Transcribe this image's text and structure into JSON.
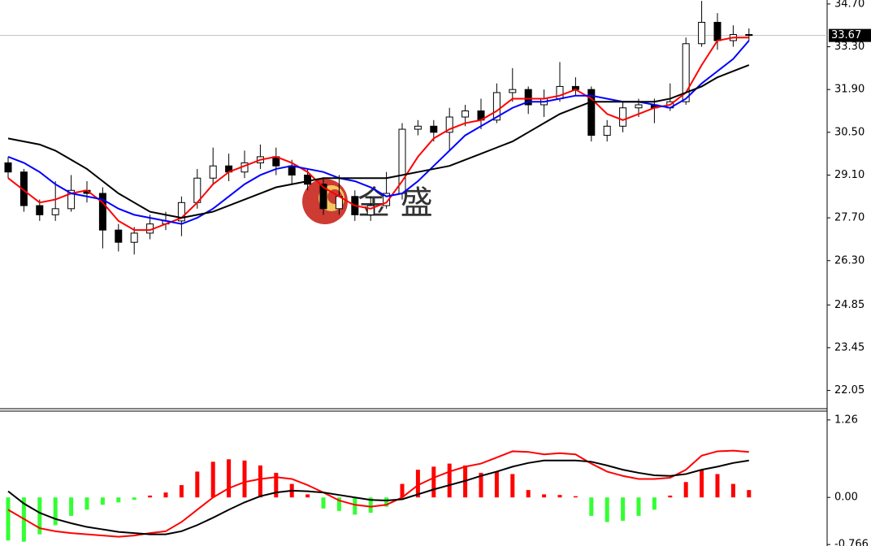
{
  "chart_data": [
    {
      "type": "candlestick",
      "up_color": "#ffffff",
      "down_color": "#000000",
      "edge_color": "#000000",
      "open": [
        29.5,
        29.2,
        28.1,
        27.8,
        28.0,
        28.6,
        28.5,
        27.3,
        26.9,
        27.2,
        27.5,
        27.6,
        28.2,
        29.0,
        29.4,
        29.2,
        29.5,
        29.7,
        29.4,
        29.1,
        28.8,
        28.0,
        28.4,
        27.8,
        28.1,
        28.5,
        30.6,
        30.7,
        30.5,
        31.0,
        31.2,
        30.9,
        31.8,
        31.9,
        31.4,
        31.6,
        32.0,
        31.9,
        30.4,
        30.7,
        31.3,
        31.4,
        31.3,
        31.5,
        33.4,
        34.1,
        33.5,
        33.7
      ],
      "high": [
        29.7,
        29.3,
        28.3,
        28.9,
        29.1,
        28.9,
        28.7,
        27.5,
        27.4,
        27.8,
        27.9,
        28.4,
        29.3,
        30.0,
        29.8,
        29.9,
        30.1,
        30.0,
        29.6,
        29.3,
        29.0,
        29.1,
        28.6,
        28.4,
        29.2,
        30.8,
        30.9,
        30.9,
        31.3,
        31.4,
        31.6,
        32.1,
        32.6,
        32.0,
        31.9,
        32.8,
        32.3,
        32.0,
        30.9,
        31.5,
        31.6,
        31.6,
        32.1,
        33.6,
        34.8,
        34.4,
        34.0,
        33.9
      ],
      "low": [
        29.0,
        27.9,
        27.6,
        27.6,
        27.9,
        28.2,
        26.7,
        26.6,
        26.5,
        27.0,
        27.3,
        27.1,
        28.0,
        28.8,
        28.9,
        29.0,
        29.3,
        29.1,
        28.8,
        28.6,
        27.8,
        27.8,
        27.6,
        27.6,
        28.0,
        28.3,
        30.4,
        30.2,
        29.9,
        30.7,
        30.6,
        30.8,
        31.5,
        31.1,
        31.0,
        31.5,
        31.7,
        30.2,
        30.2,
        30.5,
        31.0,
        30.8,
        31.2,
        31.4,
        33.3,
        33.2,
        33.3,
        33.5
      ],
      "close": [
        29.2,
        28.1,
        27.8,
        28.0,
        28.6,
        28.5,
        27.3,
        26.9,
        27.2,
        27.5,
        27.6,
        28.2,
        29.0,
        29.4,
        29.2,
        29.5,
        29.7,
        29.4,
        29.1,
        28.8,
        28.0,
        28.4,
        27.8,
        28.1,
        28.5,
        30.6,
        30.7,
        30.5,
        31.0,
        31.2,
        30.9,
        31.8,
        31.9,
        31.4,
        31.6,
        32.0,
        31.9,
        30.4,
        30.7,
        31.3,
        31.4,
        31.3,
        31.5,
        33.4,
        34.1,
        33.5,
        33.7,
        33.67
      ],
      "series": [
        {
          "color": "#ff0000",
          "values": [
            29.0,
            28.6,
            28.2,
            28.3,
            28.5,
            28.6,
            28.2,
            27.6,
            27.3,
            27.3,
            27.5,
            27.7,
            28.2,
            28.8,
            29.2,
            29.4,
            29.6,
            29.7,
            29.5,
            29.2,
            28.7,
            28.4,
            28.1,
            28.0,
            28.2,
            28.9,
            29.7,
            30.3,
            30.6,
            30.8,
            30.9,
            31.2,
            31.6,
            31.6,
            31.6,
            31.7,
            31.9,
            31.6,
            31.1,
            30.9,
            31.1,
            31.3,
            31.4,
            31.8,
            32.7,
            33.5,
            33.6,
            33.6
          ]
        },
        {
          "color": "#0000ff",
          "values": [
            29.7,
            29.5,
            29.2,
            28.8,
            28.5,
            28.4,
            28.3,
            28.0,
            27.8,
            27.7,
            27.6,
            27.5,
            27.7,
            28.0,
            28.4,
            28.8,
            29.1,
            29.3,
            29.4,
            29.3,
            29.2,
            29.0,
            28.9,
            28.7,
            28.4,
            28.5,
            28.9,
            29.4,
            29.9,
            30.4,
            30.7,
            31.0,
            31.3,
            31.5,
            31.5,
            31.6,
            31.7,
            31.7,
            31.6,
            31.5,
            31.5,
            31.4,
            31.3,
            31.6,
            32.1,
            32.5,
            32.9,
            33.5
          ]
        },
        {
          "color": "#000000",
          "values": [
            30.3,
            30.2,
            30.1,
            29.9,
            29.6,
            29.3,
            28.9,
            28.5,
            28.2,
            27.9,
            27.8,
            27.7,
            27.8,
            27.9,
            28.1,
            28.3,
            28.5,
            28.7,
            28.8,
            28.9,
            29.0,
            29.0,
            29.0,
            29.0,
            29.0,
            29.1,
            29.2,
            29.3,
            29.4,
            29.6,
            29.8,
            30.0,
            30.2,
            30.5,
            30.8,
            31.1,
            31.3,
            31.5,
            31.5,
            31.5,
            31.5,
            31.5,
            31.6,
            31.8,
            32.0,
            32.3,
            32.5,
            32.7
          ]
        }
      ],
      "last_price": 33.67,
      "watermark": "金 盛",
      "ylim": [
        21.48,
        34.83
      ],
      "yticks": [
        {
          "value": 34.7,
          "label": "34.70"
        },
        {
          "value": 33.3,
          "label": "33.30"
        },
        {
          "value": 31.9,
          "label": "31.90"
        },
        {
          "value": 30.5,
          "label": "30.50"
        },
        {
          "value": 29.1,
          "label": "29.10"
        },
        {
          "value": 27.7,
          "label": "27.70"
        },
        {
          "value": 26.3,
          "label": "26.30"
        },
        24.85,
        23.45,
        22.05
      ]
    },
    {
      "type": "macd",
      "positive_color": "#ff0000",
      "negative_color": "#33ff33",
      "values": [
        -0.7,
        -0.72,
        -0.6,
        -0.45,
        -0.3,
        -0.2,
        -0.12,
        -0.08,
        -0.04,
        0.03,
        0.08,
        0.2,
        0.42,
        0.58,
        0.62,
        0.6,
        0.52,
        0.4,
        0.22,
        0.05,
        -0.18,
        -0.22,
        -0.28,
        -0.25,
        -0.15,
        0.22,
        0.45,
        0.5,
        0.55,
        0.52,
        0.4,
        0.42,
        0.38,
        0.12,
        0.05,
        0.04,
        0.02,
        -0.3,
        -0.4,
        -0.38,
        -0.3,
        -0.2,
        0.03,
        0.25,
        0.45,
        0.38,
        0.22,
        0.12
      ],
      "series": [
        {
          "color": "#ff0000",
          "values": [
            -0.2,
            -0.35,
            -0.5,
            -0.55,
            -0.58,
            -0.6,
            -0.62,
            -0.64,
            -0.62,
            -0.58,
            -0.55,
            -0.4,
            -0.2,
            0.0,
            0.15,
            0.25,
            0.3,
            0.33,
            0.3,
            0.2,
            0.08,
            -0.05,
            -0.12,
            -0.15,
            -0.12,
            0.0,
            0.2,
            0.32,
            0.42,
            0.5,
            0.55,
            0.65,
            0.75,
            0.74,
            0.7,
            0.72,
            0.7,
            0.55,
            0.42,
            0.35,
            0.3,
            0.3,
            0.32,
            0.45,
            0.68,
            0.75,
            0.76,
            0.74
          ]
        },
        {
          "color": "#000000",
          "values": [
            0.1,
            -0.1,
            -0.25,
            -0.35,
            -0.42,
            -0.48,
            -0.52,
            -0.56,
            -0.58,
            -0.6,
            -0.6,
            -0.55,
            -0.45,
            -0.33,
            -0.2,
            -0.08,
            0.02,
            0.08,
            0.11,
            0.1,
            0.08,
            0.04,
            0.0,
            -0.04,
            -0.05,
            -0.03,
            0.05,
            0.13,
            0.2,
            0.27,
            0.35,
            0.42,
            0.5,
            0.56,
            0.6,
            0.6,
            0.6,
            0.58,
            0.52,
            0.45,
            0.4,
            0.36,
            0.35,
            0.38,
            0.45,
            0.5,
            0.56,
            0.6
          ]
        }
      ],
      "ylim": [
        -0.79,
        1.39
      ],
      "yticks": [
        1.26,
        {
          "value": 0,
          "label": "0.00"
        },
        -0.766
      ]
    }
  ]
}
